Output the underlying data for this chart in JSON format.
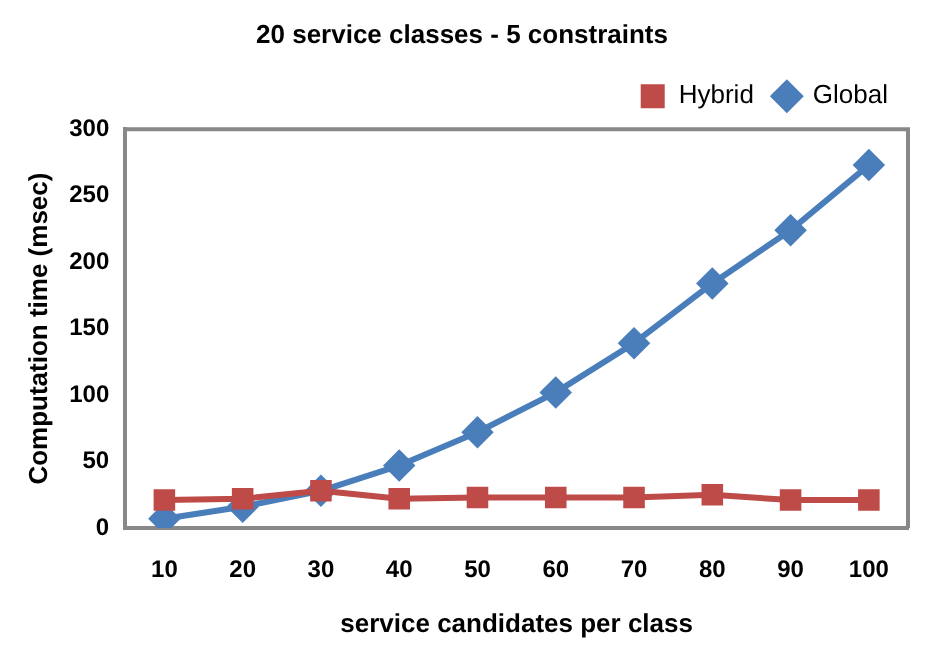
{
  "chart_data": {
    "type": "line",
    "title": "20 service classes - 5 constraints",
    "xlabel": "service candidates per class",
    "ylabel": "Computation time (msec)",
    "categories": [
      "10",
      "20",
      "30",
      "40",
      "50",
      "60",
      "70",
      "80",
      "90",
      "100"
    ],
    "series": [
      {
        "name": "Global",
        "color": "#4a7ebb",
        "marker": "diamond",
        "values": [
          7,
          16,
          28,
          47,
          72,
          102,
          139,
          184,
          224,
          273
        ]
      },
      {
        "name": "Hybrid",
        "color": "#be4b48",
        "marker": "square",
        "values": [
          21,
          22,
          28,
          22,
          23,
          23,
          23,
          25,
          21,
          21
        ]
      }
    ],
    "ylim": [
      0,
      300
    ],
    "yticks": [
      0,
      50,
      100,
      150,
      200,
      250,
      300
    ],
    "grid": false,
    "legend": "top right",
    "line_style": "solid"
  }
}
